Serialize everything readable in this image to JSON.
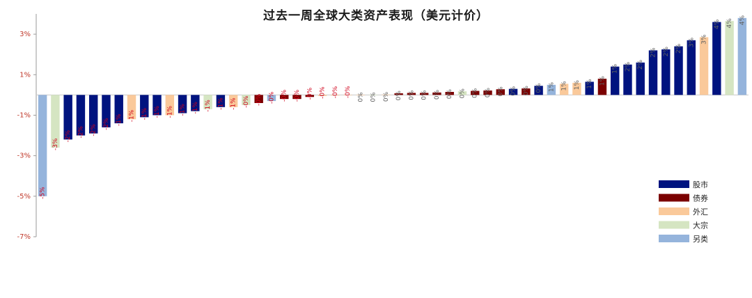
{
  "chart_data": {
    "type": "bar",
    "title": "过去一周全球大类资产表现（美元计价）",
    "y_ticks": [
      "3%",
      "1%",
      "-1%",
      "-3%",
      "-5%",
      "-7%"
    ],
    "ylim": [
      -7,
      4
    ],
    "legend_placement": "bottom-right",
    "classes": [
      {
        "name": "股市",
        "color": "#00137F"
      },
      {
        "name": "债券",
        "color": "#7B0000"
      },
      {
        "name": "外汇",
        "color": "#FAC99A"
      },
      {
        "name": "大宗",
        "color": "#D5E5C2"
      },
      {
        "name": "另类",
        "color": "#95B4DC"
      }
    ],
    "bars": [
      {
        "value": -5.0,
        "label": "-5%",
        "cls": 4
      },
      {
        "value": -2.6,
        "label": "-3%",
        "cls": 3
      },
      {
        "value": -2.2,
        "label": "-2%",
        "cls": 0
      },
      {
        "value": -2.0,
        "label": "-2%",
        "cls": 0
      },
      {
        "value": -1.9,
        "label": "-2%",
        "cls": 0
      },
      {
        "value": -1.6,
        "label": "-2%",
        "cls": 0
      },
      {
        "value": -1.4,
        "label": "-1%",
        "cls": 0
      },
      {
        "value": -1.2,
        "label": "-1%",
        "cls": 2
      },
      {
        "value": -1.1,
        "label": "-1%",
        "cls": 0
      },
      {
        "value": -1.0,
        "label": "-1%",
        "cls": 0
      },
      {
        "value": -1.0,
        "label": "-1%",
        "cls": 2
      },
      {
        "value": -0.9,
        "label": "-1%",
        "cls": 0
      },
      {
        "value": -0.8,
        "label": "-1%",
        "cls": 0
      },
      {
        "value": -0.7,
        "label": "-1%",
        "cls": 3
      },
      {
        "value": -0.6,
        "label": "-1%",
        "cls": 0
      },
      {
        "value": -0.6,
        "label": "-1%",
        "cls": 2
      },
      {
        "value": -0.5,
        "label": "-0%",
        "cls": 3
      },
      {
        "value": -0.4,
        "label": "-0%",
        "cls": 1
      },
      {
        "value": -0.3,
        "label": "-0%",
        "cls": 4
      },
      {
        "value": -0.2,
        "label": "-0%",
        "cls": 1
      },
      {
        "value": -0.2,
        "label": "-0%",
        "cls": 1
      },
      {
        "value": -0.1,
        "label": "-0%",
        "cls": 1
      },
      {
        "value": -0.05,
        "label": "-0%",
        "cls": 2
      },
      {
        "value": -0.03,
        "label": "-0%",
        "cls": 2
      },
      {
        "value": -0.02,
        "label": "-0%",
        "cls": 2
      },
      {
        "value": 0.0,
        "label": "0%",
        "cls": 2
      },
      {
        "value": 0.0,
        "label": "0%",
        "cls": 3
      },
      {
        "value": 0.02,
        "label": "0%",
        "cls": 2
      },
      {
        "value": 0.08,
        "label": "0%",
        "cls": 1
      },
      {
        "value": 0.1,
        "label": "0%",
        "cls": 1
      },
      {
        "value": 0.1,
        "label": "0%",
        "cls": 1
      },
      {
        "value": 0.12,
        "label": "0%",
        "cls": 1
      },
      {
        "value": 0.15,
        "label": "0%",
        "cls": 1
      },
      {
        "value": 0.18,
        "label": "0%",
        "cls": 3
      },
      {
        "value": 0.2,
        "label": "0%",
        "cls": 1
      },
      {
        "value": 0.22,
        "label": "0%",
        "cls": 1
      },
      {
        "value": 0.28,
        "label": "0%",
        "cls": 1
      },
      {
        "value": 0.3,
        "label": "0%",
        "cls": 0
      },
      {
        "value": 0.32,
        "label": "0%",
        "cls": 1
      },
      {
        "value": 0.45,
        "label": "0%",
        "cls": 0
      },
      {
        "value": 0.5,
        "label": "1%",
        "cls": 4
      },
      {
        "value": 0.55,
        "label": "1%",
        "cls": 2
      },
      {
        "value": 0.6,
        "label": "1%",
        "cls": 2
      },
      {
        "value": 0.65,
        "label": "1%",
        "cls": 0
      },
      {
        "value": 0.8,
        "label": "1%",
        "cls": 1
      },
      {
        "value": 1.4,
        "label": "1%",
        "cls": 0
      },
      {
        "value": 1.5,
        "label": "2%",
        "cls": 0
      },
      {
        "value": 1.6,
        "label": "2%",
        "cls": 0
      },
      {
        "value": 2.2,
        "label": "2%",
        "cls": 0
      },
      {
        "value": 2.25,
        "label": "2%",
        "cls": 0
      },
      {
        "value": 2.4,
        "label": "2%",
        "cls": 0
      },
      {
        "value": 2.7,
        "label": "3%",
        "cls": 0
      },
      {
        "value": 2.85,
        "label": "3%",
        "cls": 2
      },
      {
        "value": 3.6,
        "label": "4%",
        "cls": 0
      },
      {
        "value": 3.65,
        "label": "4%",
        "cls": 3
      },
      {
        "value": 3.8,
        "label": "4%",
        "cls": 4
      }
    ]
  }
}
